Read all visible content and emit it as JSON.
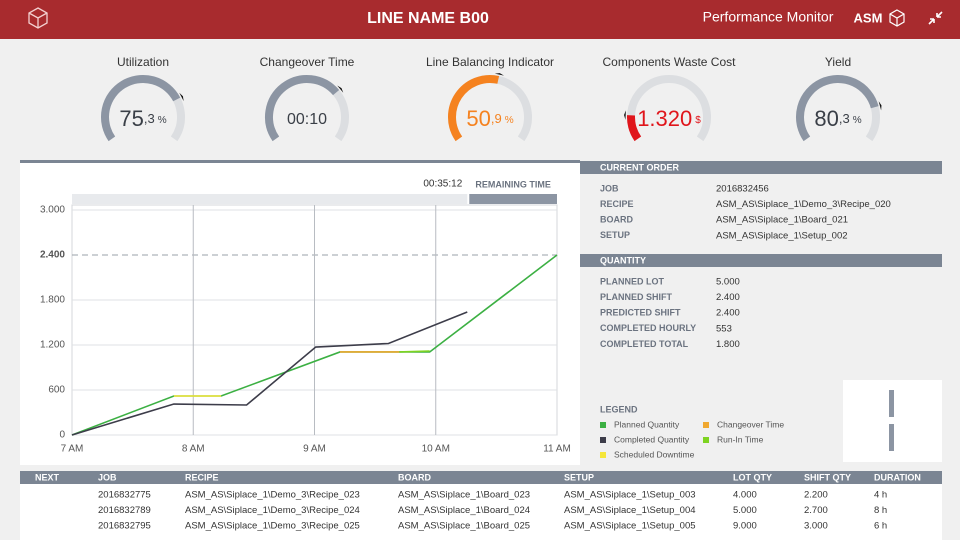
{
  "header": {
    "title": "LINE NAME B00",
    "app": "Performance Monitor",
    "brand": "ASM"
  },
  "gauges": [
    {
      "label": "Utilization",
      "value": "75",
      "decimal": ",3",
      "unit": "%",
      "color": "#8c95a3",
      "value_color": "#3a3f47",
      "fill": 75
    },
    {
      "label": "Changeover Time",
      "value": "00:10",
      "color": "#8c95a3",
      "value_color": "#3a3f47",
      "fill": 70
    },
    {
      "label": "Line Balancing Indicator",
      "value": "50",
      "decimal": ",9",
      "unit": "%",
      "color": "#f5821f",
      "value_color": "#f5821f",
      "fill": 55
    },
    {
      "label": "Components Waste Cost",
      "value": "1.320",
      "unit": "$",
      "color": "#e0151b",
      "value_color": "#e0151b",
      "fill": 15
    },
    {
      "label": "Yield",
      "value": "80",
      "decimal": ",3",
      "unit": "%",
      "color": "#8c95a3",
      "value_color": "#3a3f47",
      "fill": 80
    }
  ],
  "chart_data": {
    "type": "line",
    "remaining_time": "00:35:12",
    "remaining_label": "REMAINING TIME",
    "xlim": [
      7,
      11
    ],
    "xticks": [
      {
        "value": 7,
        "label": "7 AM"
      },
      {
        "value": 8,
        "label": "8 AM"
      },
      {
        "value": 9,
        "label": "9 AM"
      },
      {
        "value": 10,
        "label": "10 AM"
      },
      {
        "value": 11,
        "label": "11 AM"
      }
    ],
    "ylim": [
      0,
      3000
    ],
    "yticks": [
      0,
      600,
      {
        "value": 1200,
        "label": "1.200"
      },
      {
        "value": 1800,
        "label": "1.800"
      },
      {
        "value": 2400,
        "label": "2.400"
      },
      {
        "value": 3000,
        "label": "3.000"
      }
    ],
    "target": 2400,
    "grid": true,
    "legend_title": "LEGEND",
    "series": [
      {
        "name": "Planned Quantity",
        "color": "#3cb043",
        "x": [
          7,
          7.84,
          8.23,
          9.21,
          9.95,
          11
        ],
        "values": [
          0,
          520,
          520,
          1107,
          1107,
          2400
        ]
      },
      {
        "name": "Changeover Time",
        "color": "#f0a830",
        "x": [
          9.21,
          9.7
        ],
        "values": [
          1107,
          1107
        ]
      },
      {
        "name": "Completed Quantity",
        "color": "#3d3d4a",
        "x": [
          7,
          7.84,
          8.44,
          9.01,
          9.61,
          10.26
        ],
        "values": [
          0,
          413,
          400,
          1173,
          1220,
          1640
        ]
      },
      {
        "name": "Run-In Time",
        "color": "#7ed321",
        "x": [
          9.7,
          9.95
        ],
        "values": [
          1107,
          1120
        ]
      },
      {
        "name": "Scheduled Downtime",
        "color": "#f5e63a",
        "x": [
          7.84,
          8.23
        ],
        "values": [
          520,
          520
        ]
      }
    ]
  },
  "current_order": {
    "title": "CURRENT ORDER",
    "rows": [
      [
        "JOB",
        "2016832456"
      ],
      [
        "RECIPE",
        "ASM_AS\\Siplace_1\\Demo_3\\Recipe_020"
      ],
      [
        "BOARD",
        "ASM_AS\\Siplace_1\\Board_021"
      ],
      [
        "SETUP",
        "ASM_AS\\Siplace_1\\Setup_002"
      ]
    ]
  },
  "quantity": {
    "title": "QUANTITY",
    "rows": [
      [
        "PLANNED  LOT",
        "5.000"
      ],
      [
        "PLANNED SHIFT",
        "2.400"
      ],
      [
        "PREDICTED SHIFT",
        "2.400"
      ],
      [
        "COMPLETED HOURLY",
        "553"
      ],
      [
        "COMPLETED TOTAL",
        "1.800"
      ]
    ]
  },
  "table": {
    "headers": [
      "NEXT",
      "JOB",
      "RECIPE",
      "BOARD",
      "SETUP",
      "LOT QTY",
      "SHIFT QTY",
      "DURATION"
    ],
    "rows": [
      [
        "2016832775",
        "ASM_AS\\Siplace_1\\Demo_3\\Recipe_023",
        "ASM_AS\\Siplace_1\\Board_023",
        "ASM_AS\\Siplace_1\\Setup_003",
        "4.000",
        "2.200",
        "4 h"
      ],
      [
        "2016832789",
        "ASM_AS\\Siplace_1\\Demo_3\\Recipe_024",
        "ASM_AS\\Siplace_1\\Board_024",
        "ASM_AS\\Siplace_1\\Setup_004",
        "5.000",
        "2.700",
        "8 h"
      ],
      [
        "2016832795",
        "ASM_AS\\Siplace_1\\Demo_3\\Recipe_025",
        "ASM_AS\\Siplace_1\\Board_025",
        "ASM_AS\\Siplace_1\\Setup_005",
        "9.000",
        "3.000",
        "6 h"
      ]
    ]
  }
}
